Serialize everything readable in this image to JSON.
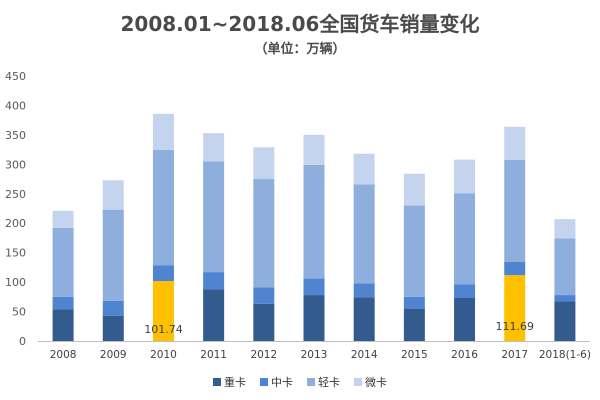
{
  "chart_data": {
    "type": "bar",
    "stacked": true,
    "title": "2008.01~2018.06全国货车销量变化",
    "subtitle": "（单位：万辆）",
    "categories": [
      "2008",
      "2009",
      "2010",
      "2011",
      "2012",
      "2013",
      "2014",
      "2015",
      "2016",
      "2017",
      "2018(1-6)"
    ],
    "ylim": [
      0,
      450
    ],
    "yticks": [
      0,
      50,
      100,
      150,
      200,
      250,
      300,
      350,
      400,
      450
    ],
    "grid": false,
    "legend_position": "bottom",
    "series": [
      {
        "name": "重卡",
        "color": "#335b8e",
        "values": [
          54,
          43,
          101.74,
          88,
          63,
          78,
          74,
          55,
          73,
          111.69,
          67
        ]
      },
      {
        "name": "中卡",
        "color": "#4f85d0",
        "values": [
          21,
          25,
          27,
          29,
          28,
          28,
          24,
          20,
          23,
          23,
          11
        ]
      },
      {
        "name": "轻卡",
        "color": "#8eaedd",
        "values": [
          117,
          155,
          196,
          188,
          184,
          193,
          168,
          155,
          155,
          173,
          96
        ]
      },
      {
        "name": "微卡",
        "color": "#c5d4ee",
        "values": [
          29,
          50,
          61,
          48,
          54,
          51,
          52,
          54,
          57,
          56,
          33
        ]
      }
    ],
    "highlight": {
      "color": "#ffc000",
      "series": 0,
      "indices": [
        2,
        9
      ]
    },
    "data_labels": [
      {
        "category_index": 2,
        "series": 0,
        "text": "101.74"
      },
      {
        "category_index": 9,
        "series": 0,
        "text": "111.69"
      }
    ],
    "colors": {
      "axis": "#bfbfbf",
      "tick_text": "#595959"
    }
  }
}
